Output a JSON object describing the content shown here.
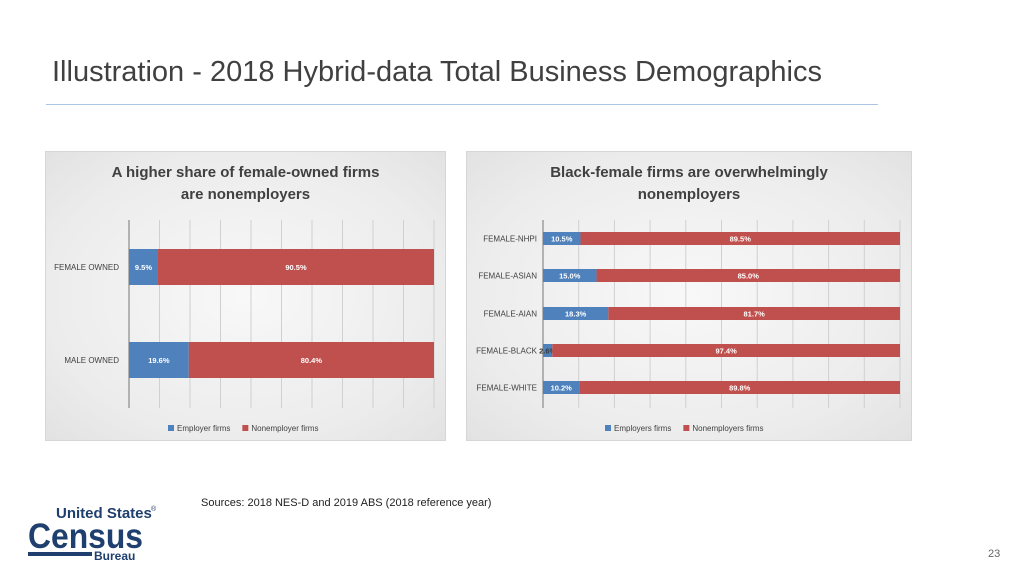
{
  "slide": {
    "title": "Illustration - 2018 Hybrid-data Total Business Demographics",
    "sources": "Sources: 2018 NES-D and 2019 ABS (2018 reference year)",
    "page_number": "23",
    "logo": {
      "line1": "United States",
      "reg": "®",
      "line2": "Census",
      "line3": "Bureau"
    }
  },
  "colors": {
    "employer": "#4f81bd",
    "nonemployer": "#c0504d",
    "label_light": "#ffffff",
    "label_dark": "#3a3a3a"
  },
  "chart_data": [
    {
      "type": "bar",
      "orientation": "horizontal",
      "stacked": true,
      "title_lines": [
        "A higher share of female-owned firms",
        "are nonemployers"
      ],
      "categories": [
        "FEMALE OWNED",
        "MALE OWNED"
      ],
      "series": [
        {
          "name": "Employer firms",
          "values": [
            9.5,
            19.6
          ],
          "labels": [
            "9.5%",
            "19.6%"
          ]
        },
        {
          "name": "Nonemployer firms",
          "values": [
            90.5,
            80.4
          ],
          "labels": [
            "90.5%",
            "80.4%"
          ]
        }
      ],
      "xlim": [
        0,
        100
      ],
      "legend": "bottom"
    },
    {
      "type": "bar",
      "orientation": "horizontal",
      "stacked": true,
      "title_lines": [
        "Black-female firms are overwhelmingly",
        "nonemployers"
      ],
      "categories": [
        "FEMALE-NHPI",
        "FEMALE-ASIAN",
        "FEMALE-AIAN",
        "FEMALE-BLACK",
        "FEMALE-WHITE"
      ],
      "series": [
        {
          "name": "Employers firms",
          "values": [
            10.5,
            15.0,
            18.3,
            2.6,
            10.2
          ],
          "labels": [
            "10.5%",
            "15.0%",
            "18.3%",
            "2.6%",
            "10.2%"
          ]
        },
        {
          "name": "Nonemployers firms",
          "values": [
            89.5,
            85.0,
            81.7,
            97.4,
            89.8
          ],
          "labels": [
            "89.5%",
            "85.0%",
            "81.7%",
            "97.4%",
            "89.8%"
          ]
        }
      ],
      "xlim": [
        0,
        100
      ],
      "legend": "bottom"
    }
  ]
}
